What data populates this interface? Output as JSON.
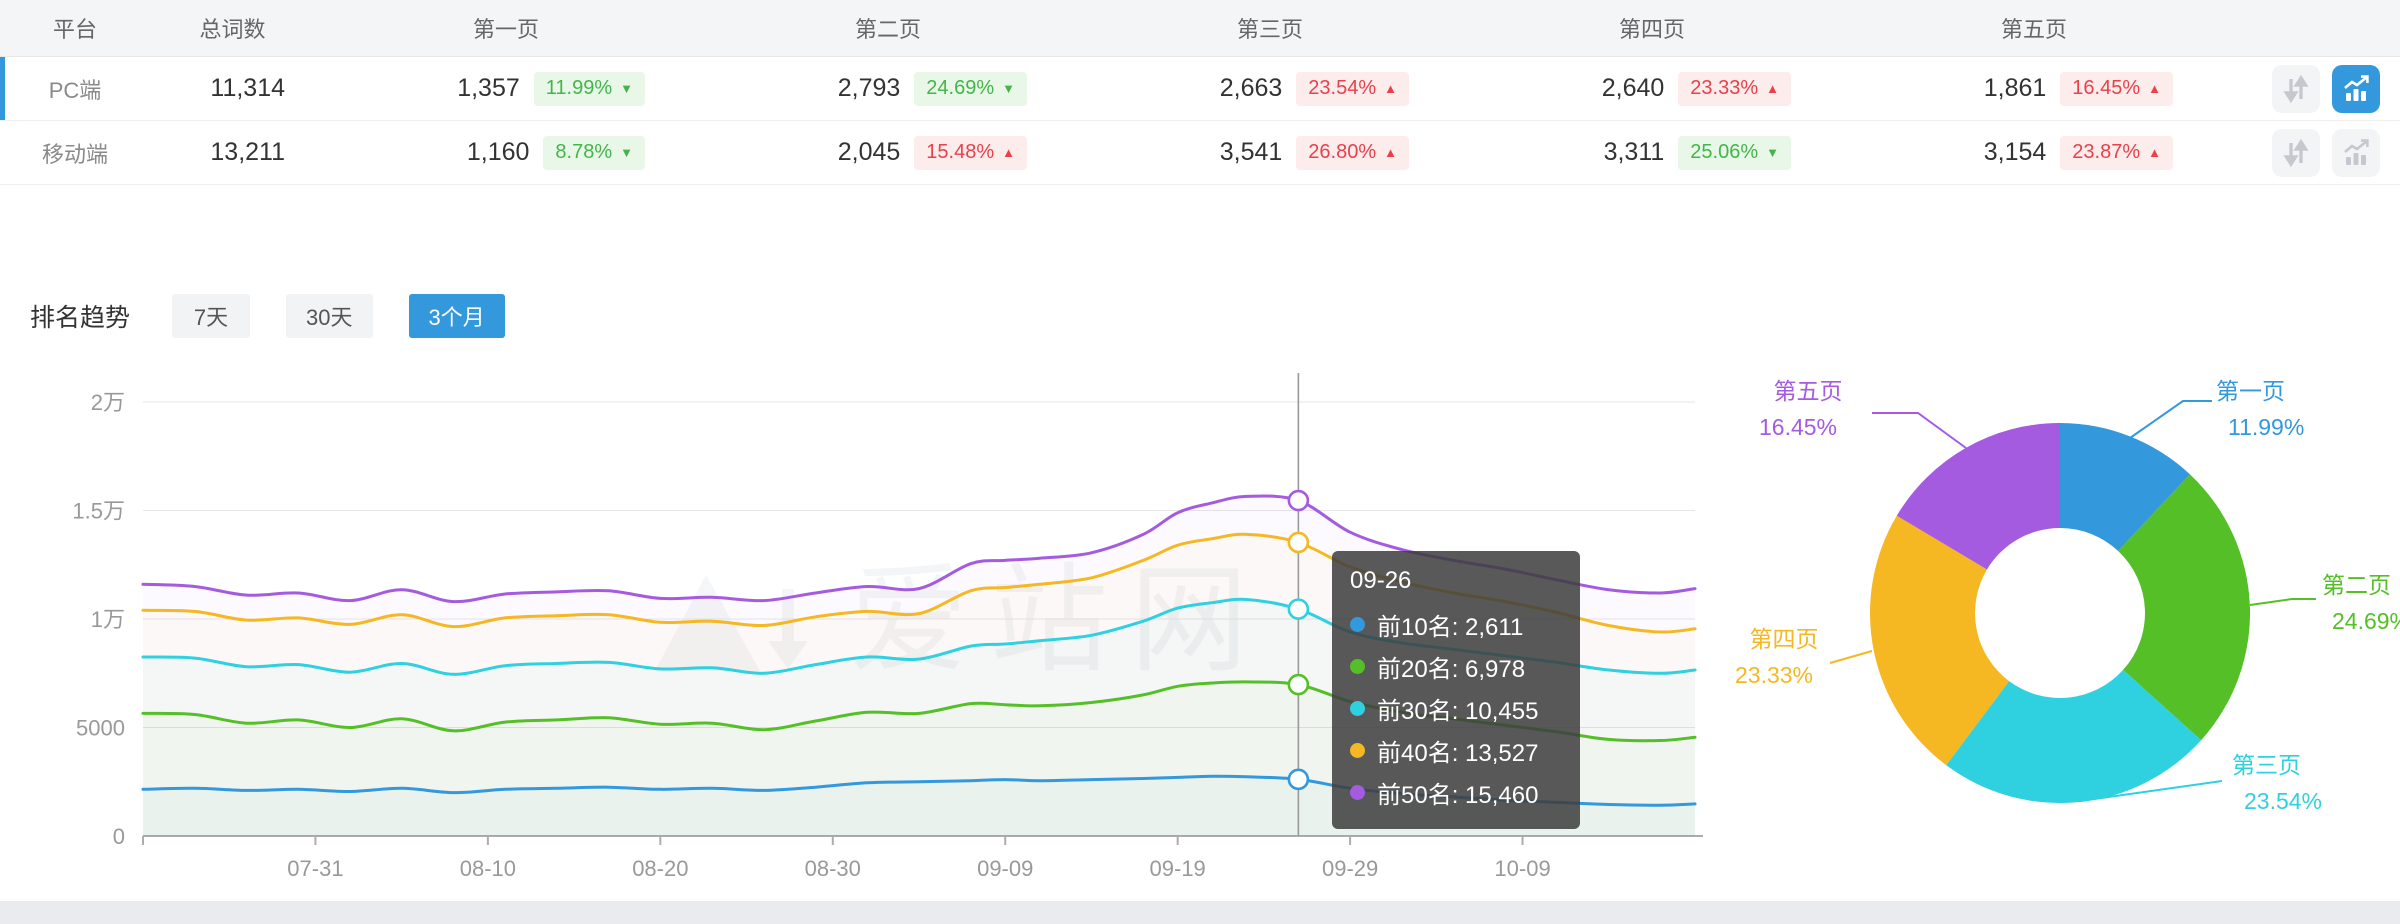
{
  "table": {
    "headers": [
      "平台",
      "总词数",
      "第一页",
      "第二页",
      "第三页",
      "第四页",
      "第五页"
    ],
    "rows": [
      {
        "platform": "PC端",
        "total": "11,314",
        "selected": true,
        "pages": [
          {
            "count": "1,357",
            "pct": "11.99%",
            "trend": "down"
          },
          {
            "count": "2,793",
            "pct": "24.69%",
            "trend": "down"
          },
          {
            "count": "2,663",
            "pct": "23.54%",
            "trend": "up"
          },
          {
            "count": "2,640",
            "pct": "23.33%",
            "trend": "up"
          },
          {
            "count": "1,861",
            "pct": "16.45%",
            "trend": "up"
          }
        ],
        "chart_active": true
      },
      {
        "platform": "移动端",
        "total": "13,211",
        "selected": false,
        "pages": [
          {
            "count": "1,160",
            "pct": "8.78%",
            "trend": "down"
          },
          {
            "count": "2,045",
            "pct": "15.48%",
            "trend": "up"
          },
          {
            "count": "3,541",
            "pct": "26.80%",
            "trend": "up"
          },
          {
            "count": "3,311",
            "pct": "25.06%",
            "trend": "down"
          },
          {
            "count": "3,154",
            "pct": "23.87%",
            "trend": "up"
          }
        ],
        "chart_active": false
      }
    ]
  },
  "trend": {
    "title": "排名趋势",
    "tabs": [
      {
        "label": "7天",
        "active": false
      },
      {
        "label": "30天",
        "active": false
      },
      {
        "label": "3个月",
        "active": true
      }
    ]
  },
  "watermark": "爱站网",
  "tooltip": {
    "date": "09-26",
    "day": 67,
    "items": [
      {
        "name": "前10名",
        "value": "2,611"
      },
      {
        "name": "前20名",
        "value": "6,978"
      },
      {
        "name": "前30名",
        "value": "10,455"
      },
      {
        "name": "前40名",
        "value": "13,527"
      },
      {
        "name": "前50名",
        "value": "15,460"
      }
    ]
  },
  "chart_data": [
    {
      "type": "line",
      "title": "排名趋势 (3个月)",
      "ylim": [
        0,
        20000
      ],
      "y_ticks": [
        [
          0,
          "0"
        ],
        [
          5000,
          "5000"
        ],
        [
          10000,
          "1万"
        ],
        [
          15000,
          "1.5万"
        ],
        [
          20000,
          "2万"
        ]
      ],
      "x_domain_days": [
        0,
        90
      ],
      "x_ticks": [
        [
          10,
          "07-31"
        ],
        [
          20,
          "08-10"
        ],
        [
          30,
          "08-20"
        ],
        [
          40,
          "08-30"
        ],
        [
          50,
          "09-09"
        ],
        [
          60,
          "09-19"
        ],
        [
          70,
          "09-29"
        ],
        [
          80,
          "10-09"
        ]
      ],
      "days": [
        0,
        3,
        6,
        9,
        12,
        15,
        18,
        21,
        24,
        27,
        30,
        33,
        36,
        39,
        42,
        45,
        48,
        50,
        52,
        55,
        58,
        60,
        62,
        64,
        67,
        70,
        73,
        76,
        79,
        82,
        85,
        88,
        90
      ],
      "series": [
        {
          "name": "前10名",
          "color": "#3398dc",
          "values": [
            2150,
            2200,
            2100,
            2150,
            2050,
            2200,
            2000,
            2150,
            2200,
            2250,
            2150,
            2200,
            2100,
            2250,
            2450,
            2500,
            2550,
            2600,
            2550,
            2600,
            2650,
            2700,
            2750,
            2730,
            2611,
            2200,
            1950,
            1800,
            1650,
            1550,
            1450,
            1420,
            1480
          ]
        },
        {
          "name": "前20名",
          "color": "#55bf27",
          "values": [
            5650,
            5600,
            5200,
            5350,
            5000,
            5400,
            4850,
            5250,
            5350,
            5450,
            5150,
            5200,
            4900,
            5300,
            5700,
            5650,
            6100,
            6050,
            6000,
            6150,
            6500,
            6900,
            7050,
            7100,
            6978,
            6200,
            5700,
            5400,
            5100,
            4800,
            4450,
            4400,
            4550
          ]
        },
        {
          "name": "前30名",
          "color": "#2fd0e0",
          "values": [
            8250,
            8200,
            7800,
            7900,
            7550,
            7950,
            7450,
            7850,
            7950,
            8000,
            7700,
            7750,
            7500,
            7900,
            8250,
            8150,
            8750,
            8850,
            9000,
            9250,
            9900,
            10500,
            10750,
            10900,
            10455,
            9400,
            8900,
            8600,
            8300,
            8000,
            7650,
            7500,
            7650
          ]
        },
        {
          "name": "前40名",
          "color": "#f5b722",
          "values": [
            10400,
            10350,
            9950,
            10050,
            9750,
            10200,
            9650,
            10050,
            10150,
            10200,
            9850,
            9900,
            9700,
            10100,
            10350,
            10250,
            11300,
            11450,
            11600,
            11900,
            12700,
            13400,
            13700,
            13900,
            13527,
            12400,
            11700,
            11200,
            10800,
            10300,
            9700,
            9400,
            9550
          ]
        },
        {
          "name": "前50名",
          "color": "#a55be0",
          "values": [
            11600,
            11500,
            11100,
            11200,
            10850,
            11350,
            10800,
            11150,
            11250,
            11300,
            10950,
            11000,
            10850,
            11200,
            11500,
            11400,
            12550,
            12700,
            12800,
            13050,
            13900,
            14900,
            15350,
            15650,
            15460,
            14000,
            13200,
            12700,
            12300,
            11800,
            11350,
            11200,
            11400
          ]
        }
      ],
      "grid": true,
      "legend_position": "none"
    },
    {
      "type": "pie",
      "donut": true,
      "slices": [
        {
          "label": "第一页",
          "value": 11.99,
          "pct": "11.99%",
          "color": "#3398dc"
        },
        {
          "label": "第二页",
          "value": 24.69,
          "pct": "24.69%",
          "color": "#55bf27"
        },
        {
          "label": "第三页",
          "value": 23.54,
          "pct": "23.54%",
          "color": "#2fd0e0"
        },
        {
          "label": "第四页",
          "value": 23.33,
          "pct": "23.33%",
          "color": "#f5b722"
        },
        {
          "label": "第五页",
          "value": 16.45,
          "pct": "16.45%",
          "color": "#a55be0"
        }
      ]
    }
  ],
  "colors": {
    "accent_blue": "#3398dc",
    "badge_green": "#44b549",
    "badge_red": "#e8414a"
  }
}
